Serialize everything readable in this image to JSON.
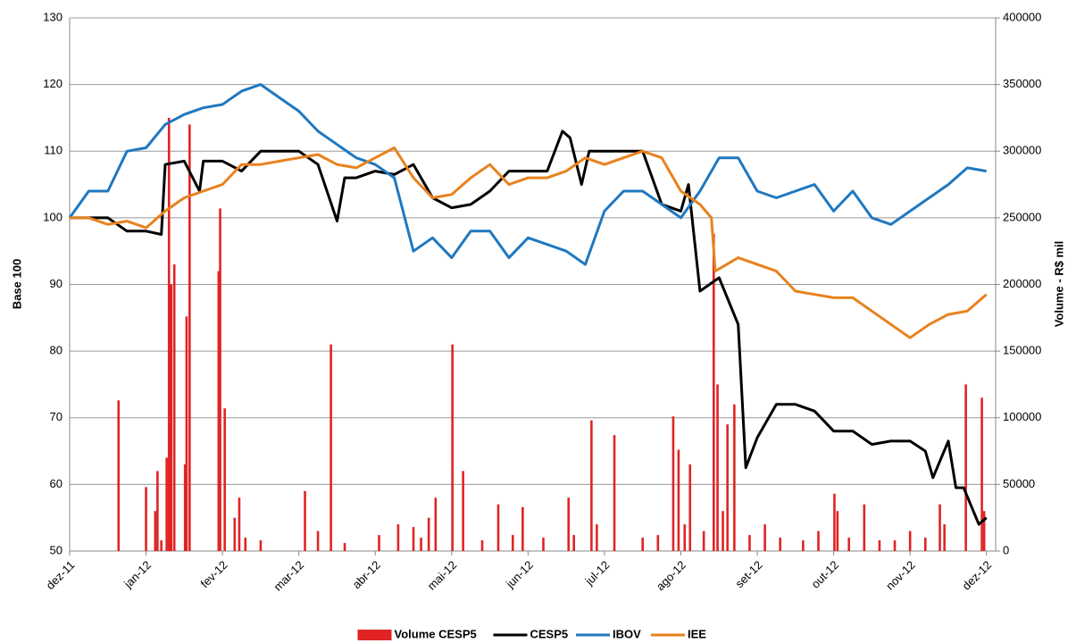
{
  "chart_data": {
    "type": "bar_line_dual",
    "ylabel": "Base 100",
    "y2label": "Volume - R$ mil",
    "xlim": [
      0,
      12.12
    ],
    "xticks": [
      {
        "value": 0,
        "label": "dez-11"
      },
      {
        "value": 1,
        "label": "jan-12"
      },
      {
        "value": 2,
        "label": "fev-12"
      },
      {
        "value": 3,
        "label": "mar-12"
      },
      {
        "value": 4,
        "label": "abr-12"
      },
      {
        "value": 5,
        "label": "mai-12"
      },
      {
        "value": 6,
        "label": "jun-12"
      },
      {
        "value": 7,
        "label": "jul-12"
      },
      {
        "value": 8,
        "label": "ago-12"
      },
      {
        "value": 9,
        "label": "set-12"
      },
      {
        "value": 10,
        "label": "out-12"
      },
      {
        "value": 11,
        "label": "nov-12"
      },
      {
        "value": 12,
        "label": "dez-12"
      }
    ],
    "ylim": [
      50,
      130
    ],
    "yticks": [
      50,
      60,
      70,
      80,
      90,
      100,
      110,
      120,
      130
    ],
    "y2lim": [
      0,
      400000
    ],
    "y2ticks": [
      0,
      50000,
      100000,
      150000,
      200000,
      250000,
      300000,
      350000,
      400000
    ],
    "grid": true,
    "legend": "bottom",
    "series": [
      {
        "name": "Volume CESP5",
        "kind": "bar",
        "axis": "y2",
        "color": "#e02424",
        "x": [
          0.64,
          1.0,
          1.12,
          1.15,
          1.2,
          1.27,
          1.3,
          1.33,
          1.37,
          1.51,
          1.53,
          1.57,
          1.95,
          1.97,
          2.03,
          2.16,
          2.22,
          2.3,
          2.5,
          3.08,
          3.25,
          3.42,
          3.6,
          4.05,
          4.3,
          4.5,
          4.6,
          4.7,
          4.79,
          5.01,
          5.15,
          5.4,
          5.61,
          5.8,
          5.93,
          6.2,
          6.53,
          6.6,
          6.83,
          6.9,
          7.13,
          7.5,
          7.7,
          7.9,
          7.97,
          8.05,
          8.12,
          8.3,
          8.43,
          8.48,
          8.55,
          8.61,
          8.7,
          8.9,
          9.1,
          9.3,
          9.6,
          9.8,
          10.01,
          10.05,
          10.2,
          10.4,
          10.6,
          10.8,
          11.0,
          11.2,
          11.39,
          11.45,
          11.73,
          11.94,
          11.97
        ],
        "values": [
          113000,
          48000,
          30000,
          60000,
          8000,
          70000,
          325000,
          200000,
          215000,
          65000,
          176000,
          320000,
          210000,
          257000,
          107000,
          25000,
          40000,
          10000,
          8000,
          45000,
          15000,
          155000,
          6000,
          12000,
          20000,
          18000,
          10000,
          25000,
          40000,
          155000,
          60000,
          8000,
          35000,
          12000,
          33000,
          10000,
          40000,
          12000,
          98000,
          20000,
          87000,
          10000,
          12000,
          101000,
          76000,
          20000,
          65000,
          15000,
          238000,
          125000,
          30000,
          95000,
          110000,
          12000,
          20000,
          10000,
          8000,
          15000,
          43000,
          30000,
          10000,
          35000,
          8000,
          8000,
          15000,
          10000,
          35000,
          20000,
          125000,
          115000,
          30000
        ]
      },
      {
        "name": "CESP5",
        "kind": "line",
        "color": "#000000",
        "x": [
          0,
          0.25,
          0.5,
          0.75,
          1.0,
          1.2,
          1.25,
          1.5,
          1.7,
          1.75,
          2.0,
          2.25,
          2.5,
          2.75,
          3.0,
          3.25,
          3.5,
          3.6,
          3.75,
          4.0,
          4.25,
          4.5,
          4.75,
          5.0,
          5.25,
          5.5,
          5.75,
          6.0,
          6.25,
          6.45,
          6.55,
          6.7,
          6.8,
          7.0,
          7.25,
          7.5,
          7.75,
          8.0,
          8.1,
          8.25,
          8.5,
          8.75,
          8.85,
          9.0,
          9.25,
          9.5,
          9.75,
          10.0,
          10.25,
          10.5,
          10.75,
          11.0,
          11.2,
          11.3,
          11.5,
          11.6,
          11.7,
          11.9,
          12.0
        ],
        "values": [
          100,
          100,
          100,
          98,
          98,
          97.5,
          108,
          108.5,
          104,
          108.5,
          108.5,
          107,
          110,
          110,
          110,
          108,
          99.5,
          106,
          106,
          107,
          106.5,
          108,
          103,
          101.5,
          102,
          104,
          107,
          107,
          107,
          113,
          112,
          105,
          110,
          110,
          110,
          110,
          102,
          101,
          105,
          89,
          91,
          84,
          62.5,
          67,
          72,
          72,
          71,
          68,
          68,
          66,
          66.5,
          66.5,
          65,
          61,
          66.5,
          59.5,
          59.5,
          54,
          55
        ]
      },
      {
        "name": "IBOV",
        "kind": "line",
        "color": "#1f78c0",
        "x": [
          0,
          0.25,
          0.5,
          0.75,
          1,
          1.25,
          1.5,
          1.75,
          2,
          2.25,
          2.5,
          2.75,
          3,
          3.25,
          3.5,
          3.75,
          4,
          4.25,
          4.5,
          4.75,
          5,
          5.25,
          5.5,
          5.75,
          6,
          6.25,
          6.5,
          6.75,
          7,
          7.25,
          7.5,
          7.75,
          8,
          8.25,
          8.5,
          8.75,
          9,
          9.25,
          9.5,
          9.75,
          10,
          10.25,
          10.5,
          10.75,
          11,
          11.25,
          11.5,
          11.75,
          12
        ],
        "values": [
          100,
          104,
          104,
          110,
          110.5,
          114,
          115.5,
          116.5,
          117,
          119,
          120,
          118,
          116,
          113,
          111,
          109,
          108,
          106,
          95,
          97,
          94,
          98,
          98,
          94,
          97,
          96,
          95,
          93,
          101,
          104,
          104,
          102,
          100,
          104,
          109,
          109,
          104,
          103,
          104,
          105,
          101,
          104,
          100,
          99,
          101,
          103,
          105,
          107.5,
          107
        ]
      },
      {
        "name": "IEE",
        "kind": "line",
        "color": "#e8821e",
        "x": [
          0,
          0.25,
          0.5,
          0.75,
          1,
          1.25,
          1.5,
          1.75,
          2,
          2.25,
          2.5,
          2.75,
          3,
          3.25,
          3.5,
          3.75,
          4,
          4.25,
          4.5,
          4.75,
          5,
          5.25,
          5.5,
          5.75,
          6,
          6.25,
          6.5,
          6.75,
          7,
          7.25,
          7.5,
          7.75,
          8,
          8.25,
          8.4,
          8.45,
          8.75,
          9,
          9.25,
          9.5,
          9.75,
          10,
          10.25,
          10.5,
          10.75,
          11,
          11.25,
          11.5,
          11.75,
          12
        ],
        "values": [
          100,
          100,
          99,
          99.5,
          98.5,
          101,
          103,
          104,
          105,
          108,
          108,
          108.5,
          109,
          109.5,
          108,
          107.5,
          109,
          110.5,
          106,
          103,
          103.5,
          106,
          108,
          105,
          106,
          106,
          107,
          109,
          108,
          109,
          110,
          109,
          104,
          102,
          100,
          92,
          94,
          93,
          92,
          89,
          88.5,
          88,
          88,
          86,
          84,
          82,
          84,
          85.5,
          86,
          88.5
        ]
      }
    ]
  }
}
